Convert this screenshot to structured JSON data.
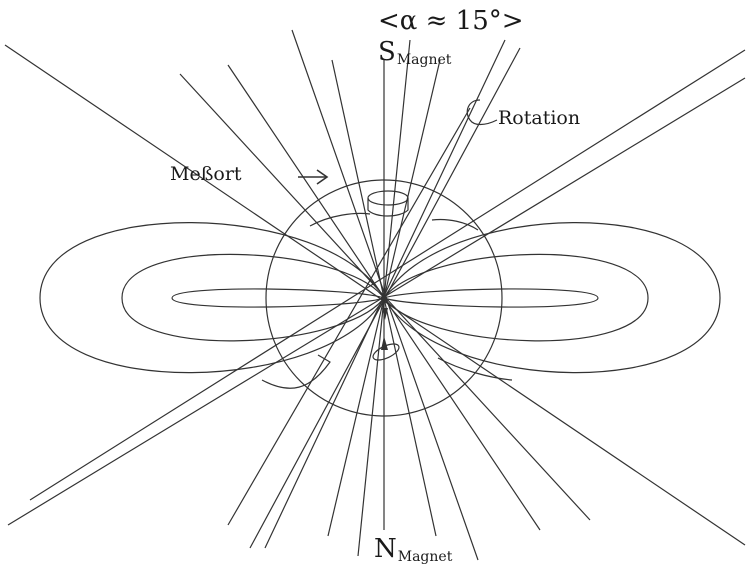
{
  "labels": {
    "angle": "<α ≈ 15°>",
    "south_pole": "S",
    "south_pole_sub": "Magnet",
    "north_pole": "N",
    "north_pole_sub": "Magnet",
    "rotation": "Rotation",
    "measuring_point": "Meßort"
  },
  "colors": {
    "stroke": "#333333",
    "text": "#1a1a1a",
    "background": "#ffffff"
  }
}
